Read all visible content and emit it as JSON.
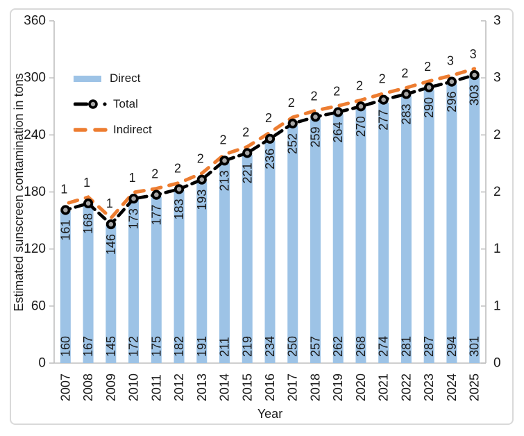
{
  "window": {
    "background": "#ffffff",
    "frame_border_color": "#d9d9d9"
  },
  "chart_data": {
    "type": "bar",
    "subtype": "bar-with-dashed-lines-combo",
    "title": "",
    "xlabel": "Year",
    "ylabel": "Estimated sunscreen contamination in tons",
    "categories": [
      "2007",
      "2008",
      "2009",
      "2010",
      "2011",
      "2012",
      "2013",
      "2014",
      "2015",
      "2016",
      "2017",
      "2018",
      "2019",
      "2020",
      "2021",
      "2022",
      "2023",
      "2024",
      "2025"
    ],
    "series": [
      {
        "name": "Direct",
        "type": "bar",
        "color": "#9DC3E6",
        "values": [
          160,
          167,
          145,
          172,
          175,
          182,
          191,
          211,
          219,
          234,
          250,
          257,
          262,
          268,
          274,
          281,
          287,
          294,
          301
        ]
      },
      {
        "name": "Total",
        "type": "line",
        "style": "dashed",
        "color": "#000000",
        "marker": "circle",
        "marker_fill": "#A6A6A6",
        "values": [
          161,
          168,
          146,
          173,
          177,
          183,
          193,
          213,
          221,
          236,
          252,
          259,
          264,
          270,
          277,
          283,
          290,
          296,
          303
        ]
      },
      {
        "name": "Indirect",
        "type": "line",
        "style": "dashed",
        "color": "#ED7D31",
        "axis": "right",
        "point_labels": [
          "1",
          "1",
          "1",
          "1",
          "2",
          "2",
          "2",
          "2",
          "2",
          "2",
          "2",
          "2",
          "2",
          "2",
          "2",
          "2",
          "2",
          "3",
          "3"
        ]
      }
    ],
    "left_axis": {
      "range": [
        0,
        360
      ],
      "ticks": [
        "0",
        "60",
        "120",
        "180",
        "240",
        "300",
        "360"
      ]
    },
    "right_axis": {
      "range": [
        0,
        3
      ],
      "tick_labels_bottom_to_top": [
        "0",
        "1",
        "1",
        "2",
        "2",
        "3",
        "3"
      ]
    },
    "legend": {
      "position": "inside-top-left",
      "items": [
        {
          "label": "Direct"
        },
        {
          "label": "Total"
        },
        {
          "label": "Indirect"
        }
      ]
    },
    "value_label_color": "#1F3864",
    "axis_line_color": "#BFBFBF",
    "grid": false
  }
}
